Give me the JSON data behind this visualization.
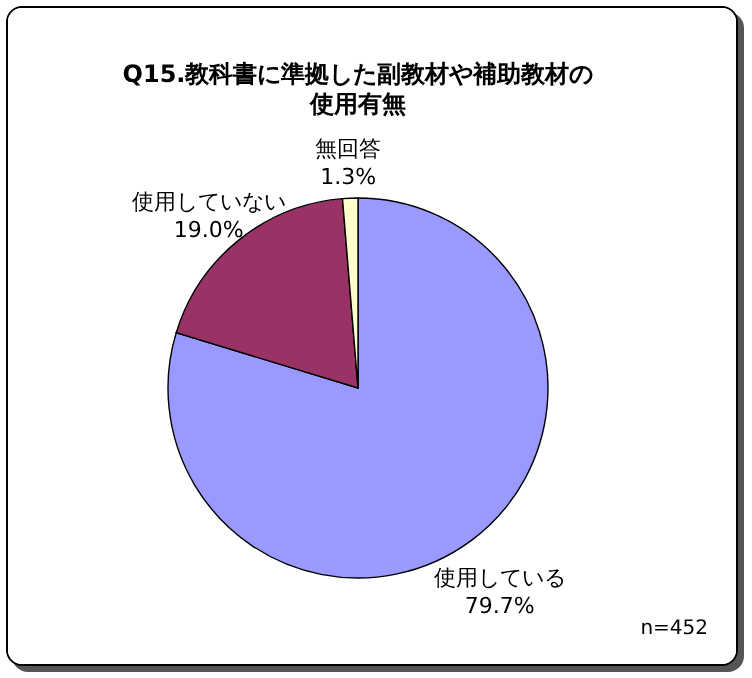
{
  "chart_data": {
    "type": "pie",
    "title": "Q15.教科書に準拠した副教材や補助教材の使用有無",
    "categories": [
      "使用している",
      "使用していない",
      "無回答"
    ],
    "values": [
      79.7,
      19.0,
      1.3
    ],
    "value_labels": [
      "79.7%",
      "19.0%",
      "1.3%"
    ],
    "colors": [
      "#9999ff",
      "#993366",
      "#ffffcc"
    ],
    "annotations": [
      "n=452"
    ],
    "legend": false
  }
}
